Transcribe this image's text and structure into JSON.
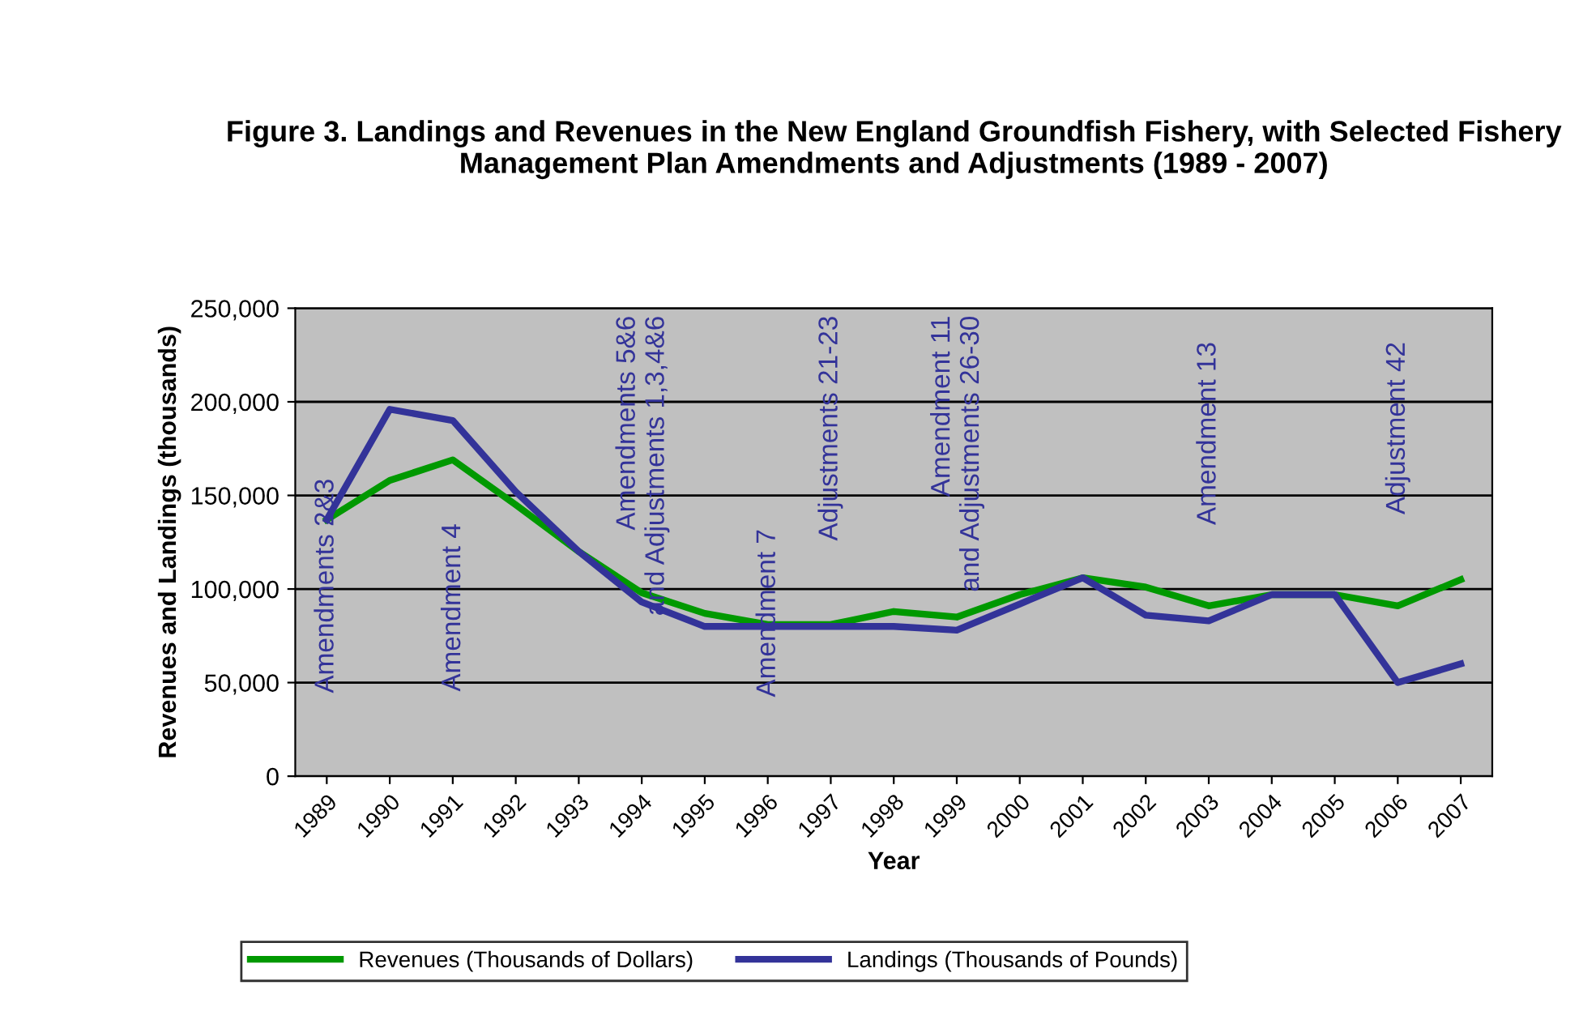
{
  "chart_data": {
    "type": "line",
    "title": "Figure 3. Landings and Revenues in the New England Groundfish Fishery, with Selected Fishery Management Plan Amendments and Adjustments (1989 - 2007)",
    "xlabel": "Year",
    "ylabel": "Revenues and Landings (thousands)",
    "categories": [
      "1989",
      "1990",
      "1991",
      "1992",
      "1993",
      "1994",
      "1995",
      "1996",
      "1997",
      "1998",
      "1999",
      "2000",
      "2001",
      "2002",
      "2003",
      "2004",
      "2005",
      "2006",
      "2007"
    ],
    "series": [
      {
        "name": "Revenues (Thousands of Dollars)",
        "color": "#009900",
        "values": [
          137000,
          158000,
          169000,
          145000,
          120000,
          98000,
          87000,
          81000,
          81000,
          88000,
          85000,
          97000,
          106000,
          101000,
          91000,
          97000,
          97000,
          91000,
          105000
        ]
      },
      {
        "name": "Landings (Thousands of Pounds)",
        "color": "#333399",
        "values": [
          137000,
          196000,
          190000,
          152000,
          120000,
          93000,
          80000,
          80000,
          80000,
          80000,
          78000,
          92000,
          106000,
          86000,
          83000,
          97000,
          97000,
          50000,
          60000
        ]
      }
    ],
    "annotations": [
      "Amendments 2&3",
      "Amendment 4",
      "Amendments 5&6\nand Adjustments 1,3,4&6",
      "Amendment 7",
      "Adjustments 21-23",
      "Amendment 11\nand Adjustments 26-30",
      "Amendment 13",
      "Adjustment 42"
    ],
    "ylim": [
      0,
      250000
    ],
    "yticks": [
      {
        "value": 0,
        "label": "0"
      },
      {
        "value": 50000,
        "label": "50,000"
      },
      {
        "value": 100000,
        "label": "100,000"
      },
      {
        "value": 150000,
        "label": "150,000"
      },
      {
        "value": 200000,
        "label": "200,000"
      },
      {
        "value": 250000,
        "label": "250,000"
      }
    ],
    "grid": "y",
    "legend": "bottom",
    "marker": "none",
    "line_style": "solid"
  }
}
